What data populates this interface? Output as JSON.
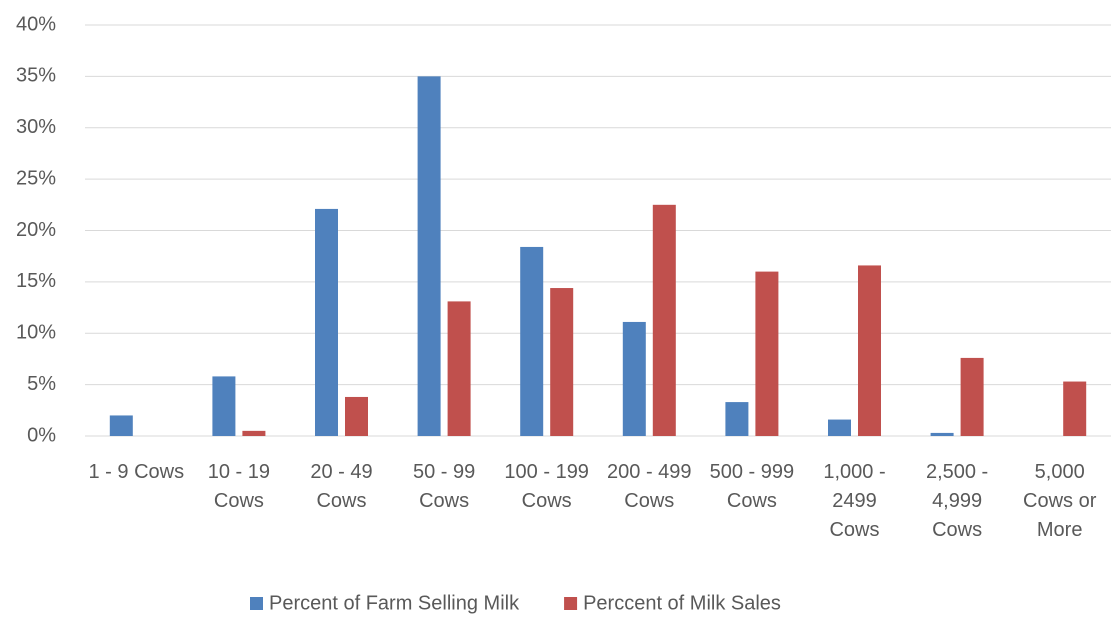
{
  "chart_data": {
    "type": "bar",
    "categories": [
      "1 - 9 Cows",
      "10 - 19 Cows",
      "20 - 49 Cows",
      "50 - 99 Cows",
      "100 - 199 Cows",
      "200 - 499 Cows",
      "500 - 999 Cows",
      "1,000 - 2499 Cows",
      "2,500 - 4,999 Cows",
      "5,000 Cows or More"
    ],
    "series": [
      {
        "name": "Percent of Farm Selling Milk",
        "color": "#4f81bd",
        "values": [
          2.0,
          5.8,
          22.1,
          35.0,
          18.4,
          11.1,
          3.3,
          1.6,
          0.3,
          0
        ]
      },
      {
        "name": "Perccent of Milk Sales",
        "color": "#c0504d",
        "values": [
          0,
          0.5,
          3.8,
          13.1,
          14.4,
          22.5,
          16.0,
          16.6,
          7.6,
          5.3
        ]
      }
    ],
    "ylim": [
      0,
      40
    ],
    "yticks": [
      {
        "value": 0,
        "label": "0%"
      },
      {
        "value": 5,
        "label": "5%"
      },
      {
        "value": 10,
        "label": "10%"
      },
      {
        "value": 15,
        "label": "15%"
      },
      {
        "value": 20,
        "label": "20%"
      },
      {
        "value": 25,
        "label": "25%"
      },
      {
        "value": 30,
        "label": "30%"
      },
      {
        "value": 35,
        "label": "35%"
      },
      {
        "value": 40,
        "label": "40%"
      }
    ],
    "grid": true,
    "legend": "bottom"
  }
}
